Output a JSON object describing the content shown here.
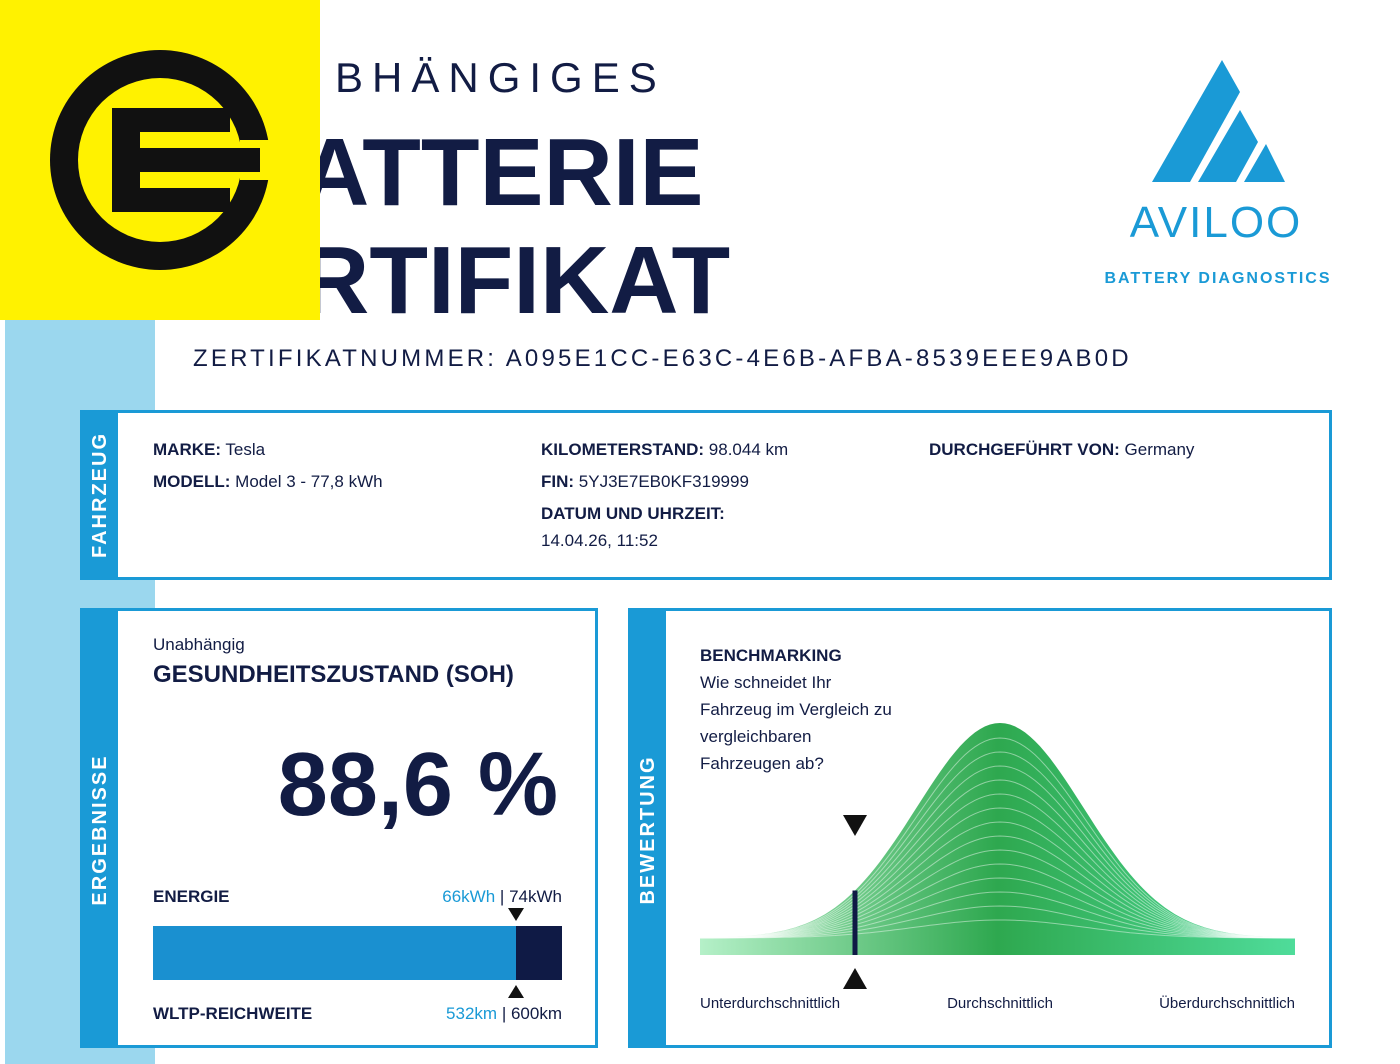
{
  "header": {
    "title_line1": "BHÄNGIGES",
    "title_line2": "ATTERIE",
    "title_line3": "RTIFIKAT",
    "certificate_number": "ZERTIFIKATNUMMER: A095E1CC-E63C-4E6B-AFBA-8539EEE9AB0D"
  },
  "brand": {
    "name": "AVILOO",
    "tagline": "BATTERY DIAGNOSTICS"
  },
  "vehicle": {
    "tab": "FAHRZEUG",
    "fields": [
      {
        "label": "MARKE:",
        "value": "Tesla"
      },
      {
        "label": "MODELL:",
        "value": "Model 3 - 77,8 kWh"
      },
      {
        "label": "KILOMETERSTAND:",
        "value": "98.044 km"
      },
      {
        "label": "FIN:",
        "value": "5YJ3E7EB0KF319999"
      },
      {
        "label": "DATUM UND UHRZEIT:",
        "value": "14.04.26, 11:52"
      },
      {
        "label": "DURCHGEFÜHRT VON:",
        "value": "Germany"
      }
    ]
  },
  "results": {
    "tab": "ERGEBNISSE",
    "kicker": "Unabhängig",
    "heading": "GESUNDHEITSZUSTAND (SOH)",
    "soh": "88,6 %",
    "energy": {
      "label": "ENERGIE",
      "current": "66kWh",
      "separator": "|",
      "nominal": "74kWh"
    },
    "range": {
      "label": "WLTP-REICHWEITE",
      "current": "532km",
      "separator": "|",
      "nominal": "600km"
    }
  },
  "benchmark": {
    "tab": "BEWERTUNG",
    "heading": "BENCHMARKING",
    "question": [
      "Wie schneidet Ihr",
      "Fahrzeug im Vergleich zu",
      "vergleichbaren",
      "Fahrzeugen ab?"
    ],
    "scale": [
      "Unterdurchschnittlich",
      "Durchschnittlich",
      "Überdurchschnittlich"
    ]
  }
}
